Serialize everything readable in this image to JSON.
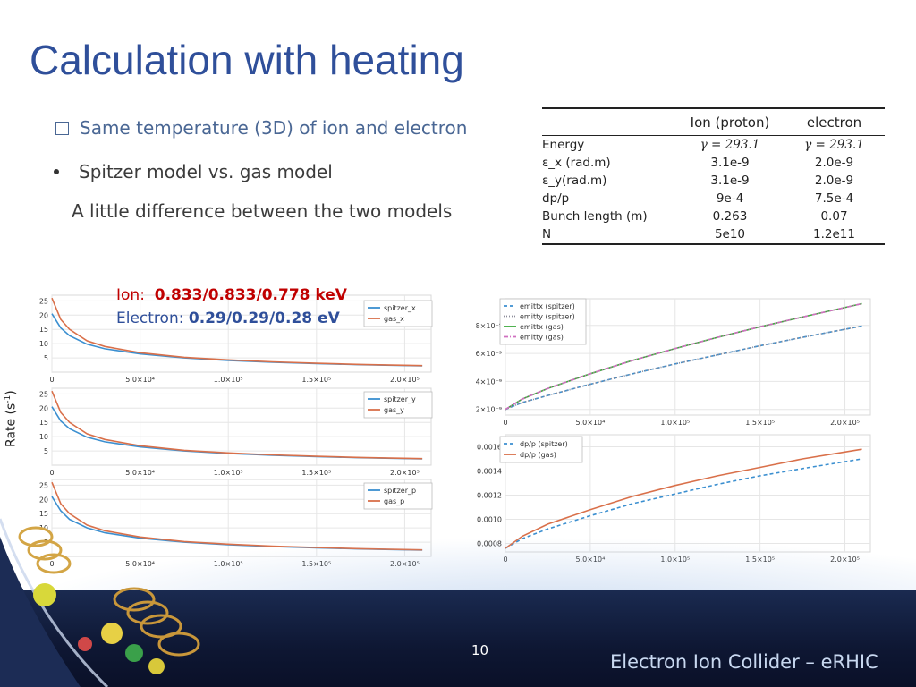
{
  "slide": {
    "title": "Calculation with heating",
    "bullet1": "Same temperature (3D) of ion and electron",
    "bullet2": "Spitzer model vs. gas model",
    "bullet3": "A little difference between the two models",
    "ion_label": "Ion:",
    "ion_value": "0.833/0.833/0.778 keV",
    "electron_label": "Electron:",
    "electron_value": "0.29/0.29/0.28 eV",
    "rate_label": "Rate (s",
    "rate_exp": "-1",
    "rate_close": ")",
    "page_number": "10",
    "brand": "Electron Ion Collider – eRHIC"
  },
  "table": {
    "headers": [
      "",
      "Ion (proton)",
      "electron"
    ],
    "rows": [
      [
        "Energy",
        "γ = 293.1",
        "γ = 293.1"
      ],
      [
        "ε_x (rad.m)",
        "3.1e-9",
        "2.0e-9"
      ],
      [
        "ε_y(rad.m)",
        "3.1e-9",
        "2.0e-9"
      ],
      [
        "dp/p",
        "9e-4",
        "7.5e-4"
      ],
      [
        "Bunch length (m)",
        "0.263",
        "0.07"
      ],
      [
        "N",
        "5e10",
        "1.2e11"
      ]
    ]
  },
  "colors": {
    "title": "#2f4f9a",
    "ion": "#c00000",
    "electron": "#2f4f9a",
    "blue_series": "#3b8fd0",
    "red_series": "#d9704a",
    "green_series": "#3daa3d",
    "pink_series": "#d070c0",
    "gray_series": "#8c8c9a"
  },
  "chart_data": [
    {
      "type": "line",
      "x_ticks": [
        "0",
        "5.0×10⁴",
        "1.0×10⁵",
        "1.5×10⁵",
        "2.0×10⁵"
      ],
      "xlim": [
        0,
        215000
      ],
      "y_ticks": [
        "5",
        "10",
        "15",
        "20",
        "25"
      ],
      "ylim": [
        0,
        27
      ],
      "x": [
        0,
        5000,
        10000,
        20000,
        30000,
        50000,
        75000,
        100000,
        125000,
        150000,
        175000,
        210000
      ],
      "series": [
        {
          "name": "spitzer_x",
          "color": "#3b8fd0",
          "values": [
            20.5,
            15.5,
            12.8,
            9.8,
            8.2,
            6.4,
            5.0,
            4.1,
            3.5,
            3.0,
            2.6,
            2.2
          ]
        },
        {
          "name": "gas_x",
          "color": "#d9704a",
          "values": [
            26.0,
            18.5,
            15.0,
            11.0,
            9.0,
            6.8,
            5.2,
            4.3,
            3.6,
            3.1,
            2.7,
            2.3
          ]
        }
      ]
    },
    {
      "type": "line",
      "x_ticks": [
        "0",
        "5.0×10⁴",
        "1.0×10⁵",
        "1.5×10⁵",
        "2.0×10⁵"
      ],
      "xlim": [
        0,
        215000
      ],
      "y_ticks": [
        "5",
        "10",
        "15",
        "20",
        "25"
      ],
      "ylim": [
        0,
        27
      ],
      "x": [
        0,
        5000,
        10000,
        20000,
        30000,
        50000,
        75000,
        100000,
        125000,
        150000,
        175000,
        210000
      ],
      "series": [
        {
          "name": "spitzer_y",
          "color": "#3b8fd0",
          "values": [
            20.5,
            15.5,
            12.8,
            9.8,
            8.2,
            6.4,
            5.0,
            4.1,
            3.5,
            3.0,
            2.6,
            2.2
          ]
        },
        {
          "name": "gas_y",
          "color": "#d9704a",
          "values": [
            26.0,
            18.5,
            15.0,
            11.0,
            9.0,
            6.8,
            5.2,
            4.3,
            3.6,
            3.1,
            2.7,
            2.3
          ]
        }
      ]
    },
    {
      "type": "line",
      "x_ticks": [
        "0",
        "5.0×10⁴",
        "1.0×10⁵",
        "1.5×10⁵",
        "2.0×10⁵"
      ],
      "xlim": [
        0,
        215000
      ],
      "y_ticks": [
        "5",
        "10",
        "15",
        "20",
        "25"
      ],
      "ylim": [
        0,
        27
      ],
      "x": [
        0,
        5000,
        10000,
        20000,
        30000,
        50000,
        75000,
        100000,
        125000,
        150000,
        175000,
        210000
      ],
      "series": [
        {
          "name": "spitzer_p",
          "color": "#3b8fd0",
          "values": [
            21.0,
            16.0,
            13.0,
            10.0,
            8.3,
            6.4,
            5.0,
            4.1,
            3.5,
            3.0,
            2.6,
            2.2
          ]
        },
        {
          "name": "gas_p",
          "color": "#d9704a",
          "values": [
            26.0,
            18.5,
            15.0,
            11.0,
            9.0,
            6.8,
            5.2,
            4.3,
            3.6,
            3.1,
            2.7,
            2.3
          ]
        }
      ]
    },
    {
      "type": "line",
      "x_ticks": [
        "0",
        "5.0×10⁴",
        "1.0×10⁵",
        "1.5×10⁵",
        "2.0×10⁵"
      ],
      "xlim": [
        0,
        215000
      ],
      "y_ticks": [
        "2×10⁻⁹",
        "4×10⁻⁹",
        "6×10⁻⁹",
        "8×10⁻⁹"
      ],
      "y_tick_values": [
        2e-09,
        4e-09,
        6e-09,
        8e-09
      ],
      "ylim": [
        1.6e-09,
        9.9e-09
      ],
      "x": [
        0,
        10000,
        25000,
        50000,
        75000,
        100000,
        125000,
        150000,
        175000,
        210000
      ],
      "series": [
        {
          "name": "emittx (spitzer)",
          "color": "#3b8fd0",
          "dash": "4,3",
          "values": [
            2e-09,
            2.5e-09,
            3e-09,
            3.8e-09,
            4.55e-09,
            5.25e-09,
            5.9e-09,
            6.55e-09,
            7.15e-09,
            7.95e-09
          ]
        },
        {
          "name": "emitty (spitzer)",
          "color": "#8c8c9a",
          "dash": "1,2",
          "values": [
            2e-09,
            2.5e-09,
            3e-09,
            3.8e-09,
            4.55e-09,
            5.25e-09,
            5.9e-09,
            6.55e-09,
            7.15e-09,
            7.95e-09
          ]
        },
        {
          "name": "emittx (gas)",
          "color": "#3daa3d",
          "dash": "",
          "values": [
            2e-09,
            2.75e-09,
            3.5e-09,
            4.55e-09,
            5.5e-09,
            6.35e-09,
            7.15e-09,
            7.9e-09,
            8.6e-09,
            9.55e-09
          ]
        },
        {
          "name": "emitty (gas)",
          "color": "#d070c0",
          "dash": "5,2,1,2",
          "values": [
            2e-09,
            2.75e-09,
            3.5e-09,
            4.55e-09,
            5.5e-09,
            6.35e-09,
            7.15e-09,
            7.9e-09,
            8.6e-09,
            9.55e-09
          ]
        }
      ]
    },
    {
      "type": "line",
      "x_ticks": [
        "0",
        "5.0×10⁴",
        "1.0×10⁵",
        "1.5×10⁵",
        "2.0×10⁵"
      ],
      "xlim": [
        0,
        215000
      ],
      "y_ticks": [
        "0.0008",
        "0.0010",
        "0.0012",
        "0.0014",
        "0.0016"
      ],
      "y_tick_values": [
        0.0008,
        0.001,
        0.0012,
        0.0014,
        0.0016
      ],
      "ylim": [
        0.00073,
        0.0017
      ],
      "x": [
        0,
        10000,
        25000,
        50000,
        75000,
        100000,
        125000,
        150000,
        175000,
        210000
      ],
      "series": [
        {
          "name": "dp/p (spitzer)",
          "color": "#3b8fd0",
          "dash": "4,3",
          "values": [
            0.00076,
            0.00084,
            0.00092,
            0.00103,
            0.00113,
            0.00121,
            0.00129,
            0.00136,
            0.00142,
            0.0015
          ]
        },
        {
          "name": "dp/p (gas)",
          "color": "#d9704a",
          "dash": "",
          "values": [
            0.00076,
            0.00086,
            0.00096,
            0.00108,
            0.00119,
            0.00128,
            0.00136,
            0.00143,
            0.0015,
            0.00158
          ]
        }
      ]
    }
  ]
}
